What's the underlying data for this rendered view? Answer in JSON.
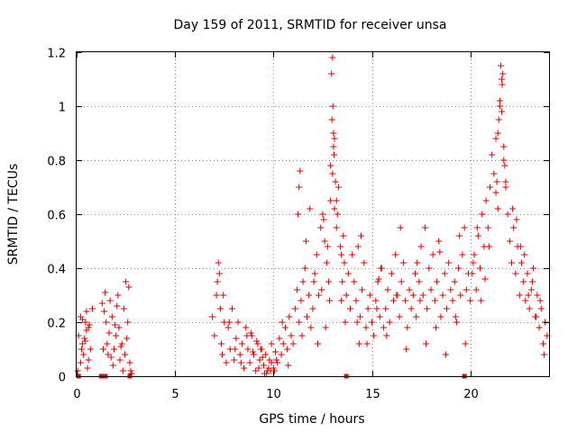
{
  "chart_data": {
    "type": "scatter",
    "title": "Day 159 of 2011, SRMTID for receiver unsa",
    "xlabel": "GPS time / hours",
    "ylabel": "SRMTID / TECUs",
    "xlim": [
      0,
      24
    ],
    "ylim": [
      0,
      1.2
    ],
    "xticks": [
      0,
      5,
      10,
      15,
      20
    ],
    "xtick_labels": [
      "0",
      "5",
      "10",
      "15",
      "20"
    ],
    "yticks": [
      0,
      0.2,
      0.4,
      0.6,
      0.8,
      1.0,
      1.2
    ],
    "ytick_labels": [
      "0",
      "0.2",
      "0.4",
      "0.6",
      "0.8",
      "1",
      "1.2"
    ],
    "grid": true,
    "marker": "+",
    "series_color": "#e00000",
    "series": [
      {
        "name": "SRMTID",
        "x": [
          0.1,
          0.2,
          0.3,
          0.35,
          0.45,
          0.5,
          0.6,
          0.7,
          0.2,
          0.4,
          0.55,
          0.65,
          0.25,
          0.5,
          0.6,
          0.05,
          0.3,
          0.45,
          0.8,
          1.3,
          1.4,
          1.5,
          1.55,
          1.6,
          1.7,
          1.8,
          1.9,
          2.0,
          2.1,
          2.15,
          2.2,
          2.3,
          2.4,
          2.45,
          2.5,
          2.6,
          2.7,
          1.45,
          1.65,
          1.85,
          2.05,
          2.25,
          2.35,
          2.55,
          1.35,
          1.75,
          1.95,
          2.65,
          2.75,
          2.8,
          6.9,
          7.0,
          7.1,
          7.2,
          7.25,
          7.3,
          7.35,
          7.4,
          7.5,
          7.6,
          7.7,
          7.8,
          7.9,
          8.0,
          8.1,
          8.2,
          8.3,
          8.4,
          8.5,
          8.6,
          8.7,
          8.8,
          8.9,
          9.0,
          9.1,
          9.2,
          9.3,
          9.4,
          9.5,
          9.6,
          9.7,
          9.8,
          9.9,
          10.0,
          10.1,
          10.2,
          10.3,
          10.4,
          10.5,
          10.6,
          10.7,
          10.8,
          10.9,
          11.0,
          7.15,
          7.45,
          7.75,
          8.05,
          8.35,
          8.65,
          8.95,
          9.25,
          9.55,
          9.85,
          10.15,
          10.45,
          10.75,
          9.45,
          9.65,
          9.75,
          9.9,
          10.05,
          9.35,
          9.15,
          8.85,
          11.1,
          11.2,
          11.3,
          11.4,
          11.5,
          11.6,
          11.7,
          11.8,
          11.9,
          12.0,
          12.1,
          12.2,
          12.3,
          12.4,
          12.5,
          12.6,
          12.7,
          12.8,
          12.9,
          13.0,
          13.1,
          13.2,
          13.3,
          13.4,
          13.5,
          13.6,
          13.7,
          13.8,
          13.9,
          14.0,
          11.25,
          11.45,
          11.65,
          11.85,
          12.05,
          12.25,
          12.45,
          12.65,
          12.85,
          13.05,
          13.25,
          13.45,
          13.65,
          12.95,
          12.97,
          13.02,
          13.05,
          13.08,
          13.0,
          12.9,
          13.1,
          13.15,
          13.2,
          11.3,
          11.35,
          12.55,
          12.75,
          13.55,
          13.45,
          14.1,
          14.2,
          14.3,
          14.4,
          14.5,
          14.6,
          14.7,
          14.8,
          14.9,
          15.0,
          15.1,
          15.2,
          15.3,
          15.4,
          15.5,
          15.6,
          15.7,
          15.8,
          15.9,
          16.0,
          16.1,
          16.2,
          16.3,
          16.4,
          16.5,
          16.6,
          16.7,
          16.8,
          16.9,
          17.0,
          17.1,
          17.2,
          17.3,
          17.4,
          17.5,
          17.6,
          17.7,
          17.8,
          17.9,
          18.0,
          18.1,
          18.2,
          18.3,
          18.4,
          18.5,
          18.6,
          18.7,
          18.8,
          18.9,
          19.0,
          19.1,
          19.2,
          19.3,
          19.4,
          19.5,
          19.6,
          19.7,
          19.8,
          19.9,
          20.0,
          14.25,
          14.75,
          15.25,
          15.75,
          16.25,
          16.75,
          17.25,
          17.75,
          18.25,
          18.75,
          19.25,
          19.75,
          14.45,
          15.45,
          16.45,
          17.45,
          18.45,
          19.45,
          14.35,
          15.35,
          20.1,
          20.2,
          20.3,
          20.4,
          20.5,
          20.6,
          20.7,
          20.8,
          20.9,
          21.0,
          21.1,
          21.2,
          21.3,
          21.4,
          21.5,
          21.6,
          21.7,
          21.8,
          21.9,
          22.0,
          22.1,
          22.2,
          22.3,
          22.4,
          22.5,
          22.6,
          22.7,
          22.8,
          22.9,
          23.0,
          23.1,
          23.2,
          23.3,
          23.4,
          23.5,
          23.6,
          23.7,
          23.8,
          23.9,
          21.55,
          21.6,
          21.62,
          21.65,
          21.5,
          21.45,
          21.4,
          21.7,
          21.35,
          21.75,
          21.3,
          21.8,
          22.15,
          22.35,
          22.55,
          22.75,
          22.95,
          23.15,
          23.35,
          23.55,
          23.75,
          20.15,
          20.35,
          20.55,
          20.75,
          20.95
        ],
        "y": [
          0.15,
          0.22,
          0.12,
          0.08,
          0.2,
          0.24,
          0.18,
          0.1,
          0.05,
          0.14,
          0.03,
          0.19,
          0.1,
          0.17,
          0.06,
          0.02,
          0.21,
          0.13,
          0.25,
          0.27,
          0.24,
          0.2,
          0.12,
          0.08,
          0.28,
          0.22,
          0.1,
          0.15,
          0.3,
          0.18,
          0.06,
          0.12,
          0.25,
          0.08,
          0.35,
          0.2,
          0.05,
          0.31,
          0.16,
          0.04,
          0.26,
          0.11,
          0.02,
          0.14,
          0.1,
          0.07,
          0.19,
          0.33,
          0.02,
          0.01,
          0.22,
          0.15,
          0.3,
          0.42,
          0.38,
          0.25,
          0.12,
          0.08,
          0.2,
          0.05,
          0.18,
          0.1,
          0.25,
          0.06,
          0.14,
          0.2,
          0.08,
          0.12,
          0.03,
          0.18,
          0.1,
          0.05,
          0.15,
          0.08,
          0.02,
          0.12,
          0.06,
          0.1,
          0.04,
          0.08,
          0.02,
          0.06,
          0.12,
          0.03,
          0.09,
          0.05,
          0.14,
          0.08,
          0.12,
          0.18,
          0.1,
          0.22,
          0.15,
          0.12,
          0.35,
          0.3,
          0.2,
          0.1,
          0.05,
          0.15,
          0.09,
          0.03,
          0.01,
          0.02,
          0.06,
          0.2,
          0.04,
          0.07,
          0.01,
          0.03,
          0.05,
          0.02,
          0.1,
          0.13,
          0.16,
          0.25,
          0.32,
          0.2,
          0.28,
          0.35,
          0.4,
          0.22,
          0.3,
          0.18,
          0.25,
          0.38,
          0.45,
          0.3,
          0.55,
          0.6,
          0.5,
          0.42,
          0.35,
          0.65,
          0.75,
          0.62,
          0.55,
          0.7,
          0.48,
          0.35,
          0.42,
          0.3,
          0.38,
          0.25,
          0.45,
          0.6,
          0.15,
          0.5,
          0.62,
          0.35,
          0.12,
          0.32,
          0.18,
          0.28,
          0.85,
          0.6,
          0.45,
          0.2,
          1.12,
          0.95,
          1.0,
          0.9,
          0.82,
          1.18,
          0.78,
          0.88,
          0.72,
          0.65,
          0.7,
          0.76,
          0.58,
          0.48,
          0.52,
          0.28,
          0.35,
          0.28,
          0.48,
          0.22,
          0.32,
          0.42,
          0.18,
          0.25,
          0.3,
          0.2,
          0.15,
          0.28,
          0.35,
          0.22,
          0.4,
          0.18,
          0.25,
          0.32,
          0.2,
          0.38,
          0.28,
          0.45,
          0.3,
          0.22,
          0.35,
          0.42,
          0.28,
          0.18,
          0.32,
          0.25,
          0.3,
          0.38,
          0.42,
          0.35,
          0.48,
          0.3,
          0.55,
          0.25,
          0.4,
          0.32,
          0.45,
          0.28,
          0.35,
          0.5,
          0.22,
          0.3,
          0.38,
          0.25,
          0.42,
          0.32,
          0.28,
          0.35,
          0.2,
          0.4,
          0.3,
          0.45,
          0.55,
          0.32,
          0.38,
          0.28,
          0.2,
          0.12,
          0.25,
          0.15,
          0.3,
          0.1,
          0.22,
          0.12,
          0.18,
          0.08,
          0.22,
          0.12,
          0.52,
          0.4,
          0.55,
          0.28,
          0.46,
          0.52,
          0.12,
          0.36,
          0.38,
          0.45,
          0.32,
          0.52,
          0.4,
          0.6,
          0.48,
          0.65,
          0.55,
          0.7,
          0.82,
          0.75,
          0.88,
          0.62,
          1.02,
          0.98,
          0.85,
          0.72,
          0.6,
          0.5,
          0.42,
          0.55,
          0.38,
          0.48,
          0.3,
          0.42,
          0.35,
          0.28,
          0.38,
          0.25,
          0.32,
          0.4,
          0.22,
          0.3,
          0.18,
          0.25,
          0.12,
          0.2,
          0.15,
          1.15,
          1.1,
          1.08,
          1.12,
          1.0,
          0.95,
          0.9,
          0.8,
          0.72,
          0.78,
          0.68,
          0.7,
          0.62,
          0.58,
          0.48,
          0.45,
          0.3,
          0.35,
          0.22,
          0.28,
          0.08,
          0.42,
          0.55,
          0.28,
          0.36,
          0.48
        ]
      }
    ],
    "zero_markers_x": [
      0.1,
      1.25,
      1.35,
      1.45,
      2.7,
      13.7,
      19.7
    ]
  }
}
